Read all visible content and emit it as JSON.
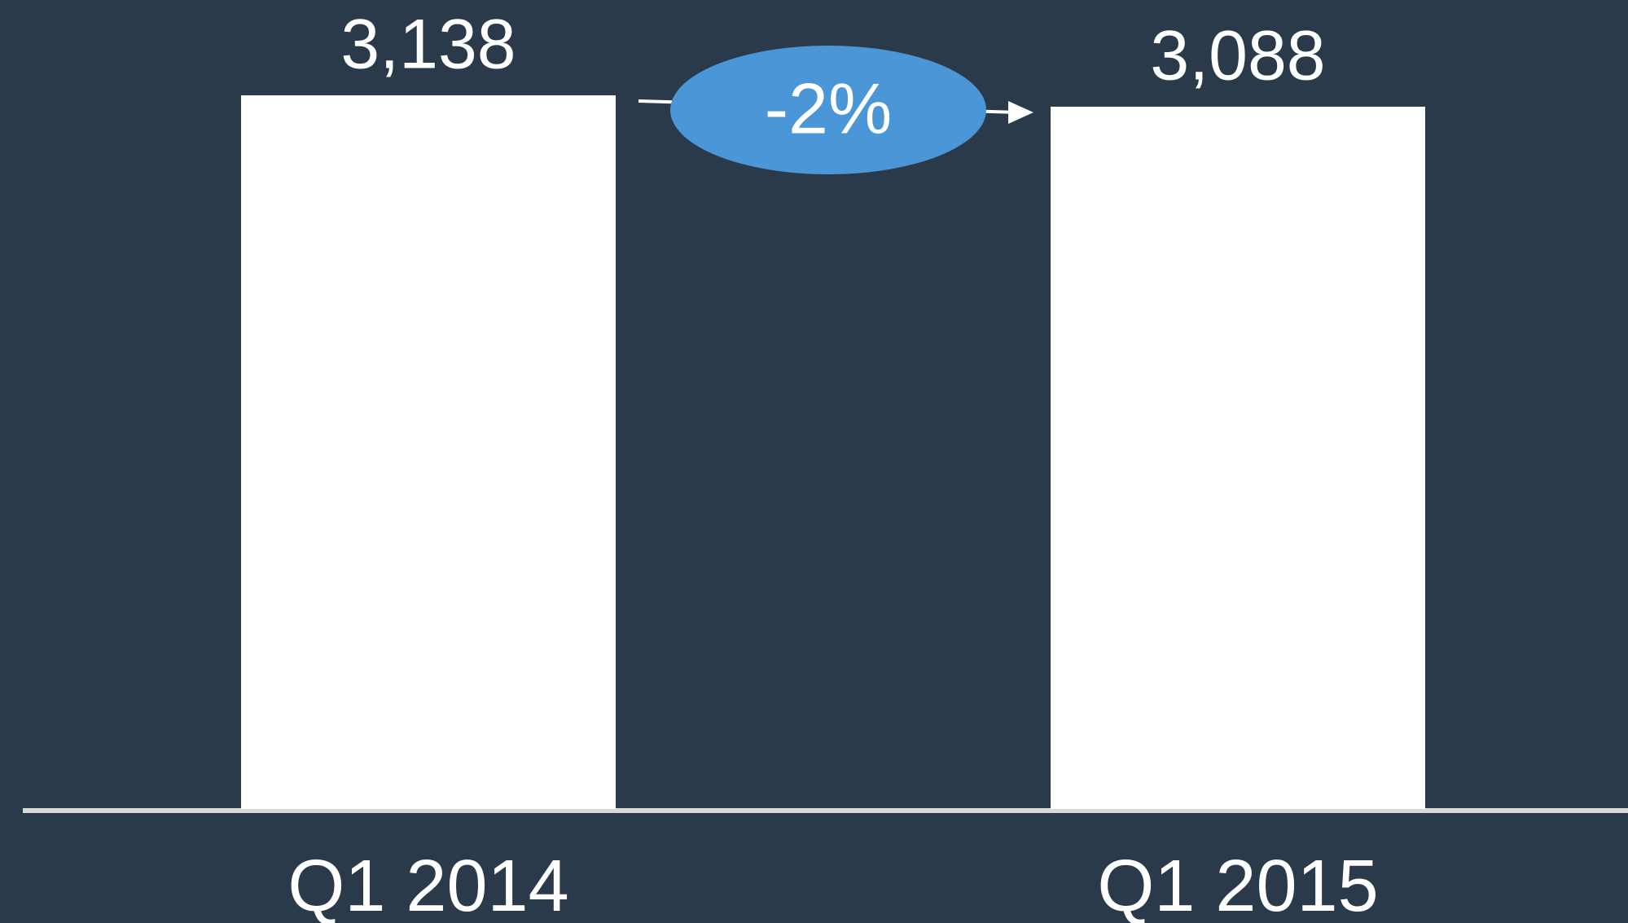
{
  "chart_data": {
    "type": "bar",
    "categories": [
      "Q1 2014",
      "Q1 2015"
    ],
    "values": [
      3138,
      3088
    ],
    "value_labels": [
      "3,138",
      "3,088"
    ],
    "color": "#ffffff",
    "annotation": "-2%"
  }
}
